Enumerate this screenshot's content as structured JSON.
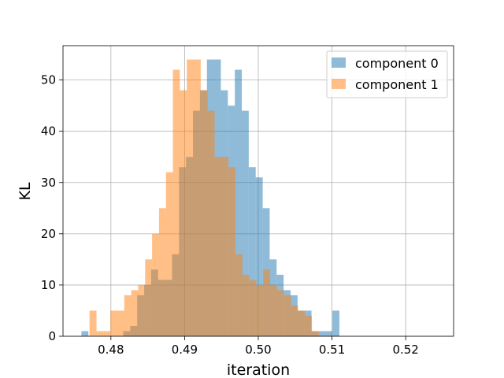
{
  "chart_data": {
    "type": "bar",
    "subtype": "histogram",
    "xlabel": "iteration",
    "ylabel": "KL",
    "xlim": [
      0.4735,
      0.5265
    ],
    "ylim": [
      0,
      56.7
    ],
    "xticks": [
      "0.48",
      "0.49",
      "0.50",
      "0.51",
      "0.52"
    ],
    "xtick_values": [
      0.48,
      0.49,
      0.5,
      0.51,
      0.52
    ],
    "yticks": [
      "0",
      "10",
      "20",
      "30",
      "40",
      "50"
    ],
    "ytick_values": [
      0,
      10,
      20,
      30,
      40,
      50
    ],
    "grid": true,
    "legend_position": "top-right",
    "series": [
      {
        "name": "component 0",
        "color": "#1f77b4",
        "alpha": 0.5,
        "bin_start": 0.476,
        "bin_width": 0.000946,
        "counts": [
          1,
          0,
          0,
          0,
          0,
          0,
          1,
          2,
          8,
          10,
          13,
          11,
          11,
          16,
          33,
          35,
          44,
          48,
          54,
          54,
          48,
          45,
          52,
          44,
          33,
          31,
          25,
          15,
          12,
          9,
          8,
          5,
          5,
          1,
          1,
          1,
          5
        ]
      },
      {
        "name": "component 1",
        "color": "#ff7f0e",
        "alpha": 0.5,
        "bin_start": 0.4771,
        "bin_width": 0.000943,
        "counts": [
          5,
          1,
          1,
          5,
          5,
          8,
          9,
          10,
          15,
          20,
          25,
          32,
          52,
          48,
          54,
          54,
          48,
          44,
          35,
          35,
          33,
          16,
          12,
          11,
          10,
          13,
          10,
          9,
          8,
          6,
          5,
          4,
          1
        ]
      }
    ]
  },
  "legend": {
    "items": [
      "component 0",
      "component 1"
    ]
  }
}
